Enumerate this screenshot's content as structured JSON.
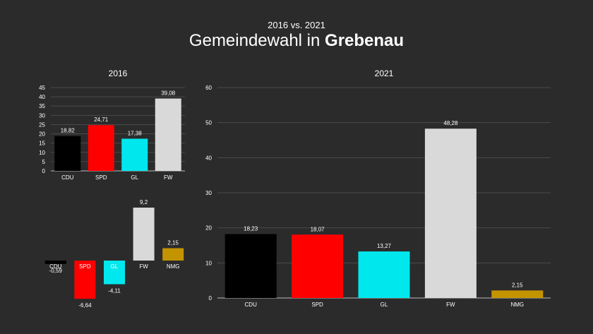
{
  "header": {
    "subtitle": "2016 vs. 2021",
    "title_prefix": "Gemeindewahl in ",
    "title_bold": "Grebenau"
  },
  "colors": {
    "CDU": "#000000",
    "SPD": "#ff0000",
    "GL": "#00e8ee",
    "FW": "#d9d9d9",
    "NMG": "#c49400",
    "background": "#2b2b2b",
    "grid": "#4a4a4a"
  },
  "chart_data": [
    {
      "type": "bar",
      "title": "2016",
      "categories": [
        "CDU",
        "SPD",
        "GL",
        "FW"
      ],
      "values": [
        18.82,
        24.71,
        17.38,
        39.08
      ],
      "labels": [
        "18,82",
        "24,71",
        "17,38",
        "39,08"
      ],
      "ylim": [
        0,
        45
      ],
      "yticks": [
        0,
        5,
        10,
        15,
        20,
        25,
        30,
        35,
        40,
        45
      ],
      "grid": true
    },
    {
      "type": "bar",
      "title": "",
      "categories": [
        "CDU",
        "SPD",
        "GL",
        "FW",
        "NMG"
      ],
      "values": [
        -0.59,
        -6.64,
        -4.11,
        9.2,
        2.15
      ],
      "labels": [
        "-0,59",
        "-6,64",
        "-4,11",
        "9,2",
        "2,15"
      ],
      "grid": false
    },
    {
      "type": "bar",
      "title": "2021",
      "categories": [
        "CDU",
        "SPD",
        "GL",
        "FW",
        "NMG"
      ],
      "values": [
        18.23,
        18.07,
        13.27,
        48.28,
        2.15
      ],
      "labels": [
        "18,23",
        "18,07",
        "13,27",
        "48,28",
        "2,15"
      ],
      "ylim": [
        0,
        60
      ],
      "yticks": [
        0,
        10,
        20,
        30,
        40,
        50,
        60
      ],
      "grid": true
    }
  ]
}
